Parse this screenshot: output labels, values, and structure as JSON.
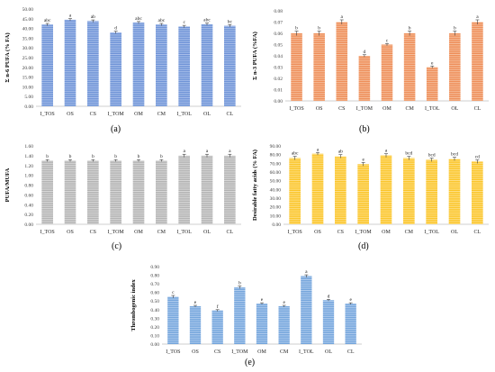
{
  "categories": [
    "I_TOS",
    "OS",
    "CS",
    "I_TOM",
    "OM",
    "CM",
    "I_TOL",
    "OL",
    "CL"
  ],
  "chart_data": [
    {
      "type": "bar",
      "panel_label": "(a)",
      "ylabel": "Σ n-6 PUFA (% FA)",
      "ylim": [
        0,
        50
      ],
      "yticks": [
        "0.00",
        "5.00",
        "10.00",
        "15.00",
        "20.00",
        "25.00",
        "30.00",
        "35.00",
        "40.00",
        "45.00",
        "50.00"
      ],
      "values": [
        42.0,
        44.5,
        43.8,
        38.0,
        43.0,
        42.0,
        41.0,
        42.2,
        41.4
      ],
      "errors": [
        0.6,
        0.6,
        0.6,
        0.6,
        0.6,
        0.6,
        0.6,
        0.6,
        0.6
      ],
      "letters": [
        "abc",
        "a",
        "ab",
        "d",
        "abc",
        "abc",
        "c",
        "abc",
        "bc"
      ],
      "color": "#6f93d7",
      "stripe": "#a9c0ea"
    },
    {
      "type": "bar",
      "panel_label": "(b)",
      "ylabel": "Σ n-3 PUFA (%FA)",
      "ylim": [
        0,
        0.08
      ],
      "yticks": [
        "0.00",
        "0.01",
        "0.02",
        "0.03",
        "0.04",
        "0.05",
        "0.06",
        "0.07",
        "0.08"
      ],
      "values": [
        0.06,
        0.06,
        0.07,
        0.04,
        0.05,
        0.06,
        0.03,
        0.06,
        0.07
      ],
      "errors": [
        0.002,
        0.002,
        0.002,
        0.001,
        0.001,
        0.002,
        0.001,
        0.002,
        0.002
      ],
      "letters": [
        "b",
        "b",
        "a",
        "d",
        "c",
        "b",
        "e",
        "b",
        "a"
      ],
      "color": "#ee8d58",
      "stripe": "#f6c09e"
    },
    {
      "type": "bar",
      "panel_label": "(c)",
      "ylabel": "PUFA/MUFA",
      "ylim": [
        0,
        1.6
      ],
      "yticks": [
        "0.00",
        "0.20",
        "0.40",
        "0.60",
        "0.80",
        "1.00",
        "1.20",
        "1.40",
        "1.60"
      ],
      "values": [
        1.3,
        1.3,
        1.3,
        1.3,
        1.3,
        1.3,
        1.4,
        1.4,
        1.4
      ],
      "errors": [
        0.02,
        0.02,
        0.02,
        0.02,
        0.02,
        0.02,
        0.03,
        0.03,
        0.03
      ],
      "letters": [
        "b",
        "b",
        "b",
        "b",
        "b",
        "b",
        "a",
        "a",
        "a"
      ],
      "color": "#b3b3b3",
      "stripe": "#d9d9d9"
    },
    {
      "type": "bar",
      "panel_label": "(d)",
      "ylabel": "Desirable fatty acids (% FA)",
      "ylim": [
        0,
        90
      ],
      "yticks": [
        "0.00",
        "10.00",
        "20.00",
        "30.00",
        "40.00",
        "50.00",
        "60.00",
        "70.00",
        "80.00",
        "90.00"
      ],
      "values": [
        76.0,
        81.0,
        78.0,
        69.0,
        79.0,
        76.0,
        74.0,
        75.0,
        72.0
      ],
      "errors": [
        2.0,
        1.5,
        2.0,
        2.0,
        2.0,
        2.0,
        2.0,
        2.0,
        2.0
      ],
      "letters": [
        "abc",
        "a",
        "ab",
        "e",
        "a",
        "bcd",
        "bcd",
        "bcd",
        "cd"
      ],
      "color": "#fbc52a",
      "stripe": "#fde089"
    },
    {
      "type": "bar",
      "panel_label": "(e)",
      "ylabel": "Thrombogenic index",
      "ylim": [
        0,
        0.9
      ],
      "yticks": [
        "0.00",
        "0.10",
        "0.20",
        "0.30",
        "0.40",
        "0.50",
        "0.60",
        "0.70",
        "0.80",
        "0.90"
      ],
      "values": [
        0.55,
        0.44,
        0.39,
        0.66,
        0.47,
        0.44,
        0.79,
        0.51,
        0.47
      ],
      "errors": [
        0.015,
        0.01,
        0.01,
        0.015,
        0.01,
        0.01,
        0.015,
        0.01,
        0.01
      ],
      "letters": [
        "c",
        "e",
        "f",
        "b",
        "e",
        "e",
        "a",
        "d",
        "e"
      ],
      "color": "#74a5dc",
      "stripe": "#b2cdee"
    }
  ]
}
